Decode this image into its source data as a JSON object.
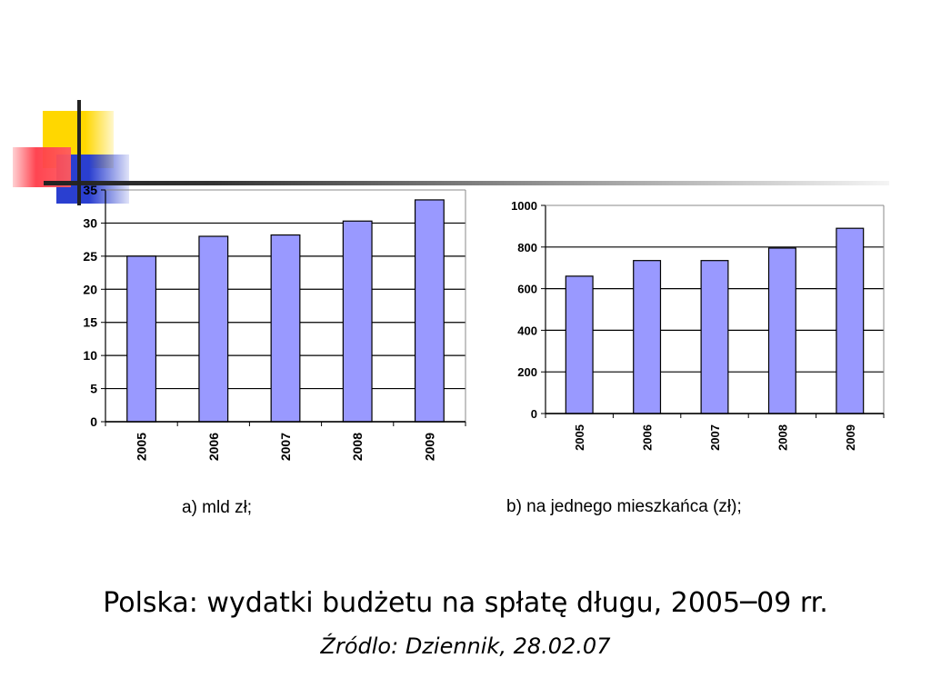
{
  "slide": {
    "title": "Polska: wydatki budżetu na spłatę długu, 2005─09 rr.",
    "source": "Źródlo: Dziennik, 28.02.07"
  },
  "colors": {
    "bar_fill": "#9999ff",
    "bar_stroke": "#000000",
    "grid": "#000000",
    "deco_yellow": "#ffd700",
    "deco_blue": "#2a3fd0",
    "deco_red": "#ff3b48"
  },
  "chart_data": [
    {
      "type": "bar",
      "caption": "a) mld zł;",
      "categories": [
        "2005",
        "2006",
        "2007",
        "2008",
        "2009"
      ],
      "values": [
        25,
        28,
        28.2,
        30.3,
        33.5
      ],
      "ylim": [
        0,
        35
      ],
      "yticks": [
        "0",
        "5",
        "10",
        "15",
        "20",
        "25",
        "30",
        "35"
      ],
      "grid": true,
      "xlabel": "",
      "ylabel": ""
    },
    {
      "type": "bar",
      "caption": "b) na jednego mieszkańca (zł);",
      "categories": [
        "2005",
        "2006",
        "2007",
        "2008",
        "2009"
      ],
      "values": [
        660,
        735,
        735,
        795,
        890
      ],
      "ylim": [
        0,
        1000
      ],
      "yticks": [
        "0",
        "200",
        "400",
        "600",
        "800",
        "1000"
      ],
      "grid": true,
      "xlabel": "",
      "ylabel": ""
    }
  ]
}
